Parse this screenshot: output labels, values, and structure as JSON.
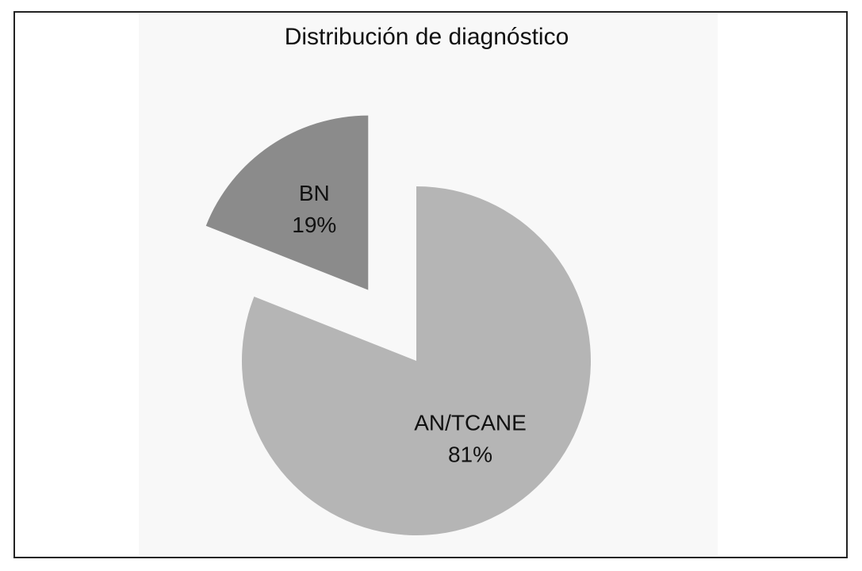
{
  "chart_data": {
    "type": "pie",
    "title": "Distribución de diagnóstico",
    "categories": [
      "AN/TCANE",
      "BN"
    ],
    "values": [
      81,
      19
    ],
    "value_labels": [
      "81%",
      "19%"
    ],
    "colors": [
      "#b5b5b5",
      "#8b8b8b"
    ],
    "explode": [
      false,
      true
    ]
  }
}
